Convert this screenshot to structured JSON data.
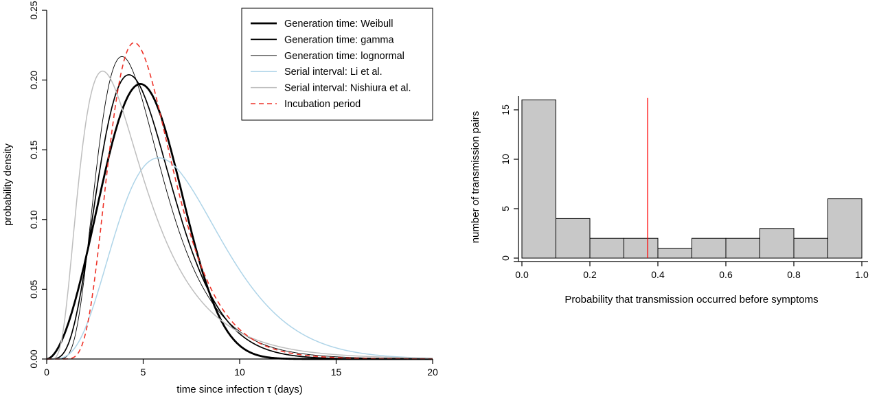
{
  "figure": {
    "background": "#ffffff"
  },
  "chart_data": [
    {
      "type": "line",
      "title": "",
      "xlabel": "time since infection τ (days)",
      "ylabel": "probability density",
      "xlim": [
        0,
        20
      ],
      "ylim": [
        0,
        0.25
      ],
      "xticks": [
        0,
        5,
        10,
        15,
        20
      ],
      "yticks": [
        "0.00",
        "0.05",
        "0.10",
        "0.15",
        "0.20",
        "0.25"
      ],
      "grid": false,
      "legend_position": "topright",
      "series": [
        {
          "name": "Generation time: Weibull",
          "dist": "weibull",
          "params": {
            "shape": 2.826,
            "scale": 5.665
          },
          "peak": {
            "x": 4.9,
            "y": 0.197
          },
          "color": "#000000",
          "width": 2.8,
          "dash": null
        },
        {
          "name": "Generation time: gamma",
          "dist": "gamma",
          "params": {
            "shape": 5.9,
            "rate": 1.15
          },
          "peak": {
            "x": 4.3,
            "y": 0.203
          },
          "color": "#000000",
          "width": 1.7,
          "dash": null
        },
        {
          "name": "Generation time: lognormal",
          "dist": "lognormal",
          "params": {
            "meanlog": 1.546,
            "sdlog": 0.43
          },
          "peak": {
            "x": 3.9,
            "y": 0.218
          },
          "color": "#000000",
          "width": 0.9,
          "dash": null
        },
        {
          "name": "Serial interval: Li et al.",
          "dist": "gamma",
          "params": {
            "shape": 5.57,
            "rate": 0.787
          },
          "peak": {
            "x": 5.8,
            "y": 0.147
          },
          "color": "#aed4e8",
          "width": 1.5,
          "dash": null
        },
        {
          "name": "Serial interval: Nishiura et al.",
          "dist": "lognormal",
          "params": {
            "meanlog": 1.386,
            "sdlog": 0.568
          },
          "peak": {
            "x": 2.9,
            "y": 0.206
          },
          "color": "#bebebe",
          "width": 1.5,
          "dash": null
        },
        {
          "name": "Incubation period",
          "dist": "lognormal",
          "params": {
            "meanlog": 1.644,
            "sdlog": 0.363
          },
          "peak": {
            "x": 4.5,
            "y": 0.227
          },
          "color": "#ee3228",
          "width": 1.6,
          "dash": "7,5"
        }
      ]
    },
    {
      "type": "bar",
      "title": "",
      "xlabel": "Probability that transmission occurred before symptoms",
      "ylabel": "number of transmission pairs",
      "breaks": [
        0,
        0.1,
        0.2,
        0.3,
        0.4,
        0.5,
        0.6,
        0.7,
        0.8,
        0.9,
        1.0
      ],
      "counts": [
        16,
        4,
        2,
        2,
        1,
        2,
        2,
        3,
        2,
        6
      ],
      "xticks": [
        "0.0",
        "0.2",
        "0.4",
        "0.6",
        "0.8",
        "1.0"
      ],
      "yticks": [
        0,
        5,
        10,
        15
      ],
      "ylim": [
        0,
        16
      ],
      "grid": false,
      "bar_fill": "#c8c8c8",
      "bar_stroke": "#000000",
      "vline": {
        "x": 0.37,
        "color": "#ff0000"
      }
    }
  ]
}
